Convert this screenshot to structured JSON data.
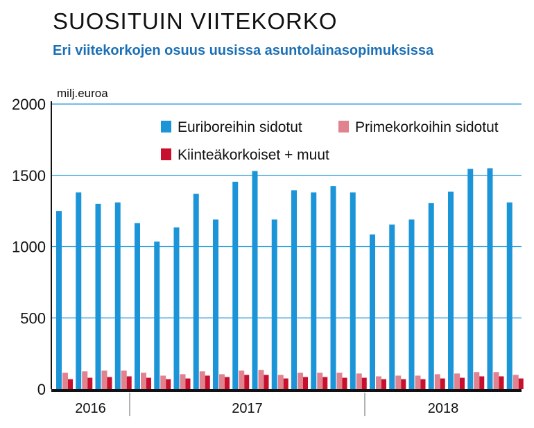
{
  "title": "SUOSITUIN VIITEKORKO",
  "subtitle": "Eri viitekorkojen osuus uusissa asuntolainasopimuksissa",
  "chart_data": {
    "type": "bar",
    "unit_label": "milj.euroa",
    "ylim": [
      0,
      2000
    ],
    "yticks": [
      0,
      500,
      1000,
      1500,
      2000
    ],
    "grid": true,
    "legend_position": "top-right",
    "years": [
      {
        "label": "2016",
        "months": 4
      },
      {
        "label": "2017",
        "months": 12
      },
      {
        "label": "2018",
        "months": 8
      }
    ],
    "colors": {
      "euribor": "#1b95d8",
      "prime": "#e0838f",
      "fixed": "#c8102e",
      "grid": "#1b95d8",
      "axis": "#111111"
    },
    "series": [
      {
        "name": "Euriboreihin sidotut",
        "key": "euribor",
        "values": [
          1250,
          1380,
          1300,
          1310,
          1165,
          1035,
          1135,
          1370,
          1190,
          1455,
          1530,
          1190,
          1395,
          1380,
          1425,
          1380,
          1085,
          1155,
          1190,
          1305,
          1385,
          1545,
          1550,
          1310
        ]
      },
      {
        "name": "Primekorkoihin sidotut",
        "key": "prime",
        "values": [
          115,
          125,
          130,
          130,
          115,
          95,
          105,
          125,
          105,
          130,
          135,
          100,
          115,
          115,
          115,
          110,
          90,
          95,
          95,
          105,
          110,
          120,
          120,
          100
        ]
      },
      {
        "name": "Kiinteäkorkoiset + muut",
        "key": "fixed",
        "values": [
          70,
          80,
          85,
          90,
          80,
          70,
          75,
          95,
          85,
          100,
          100,
          75,
          85,
          85,
          80,
          80,
          70,
          70,
          70,
          75,
          80,
          90,
          90,
          75
        ]
      }
    ]
  }
}
